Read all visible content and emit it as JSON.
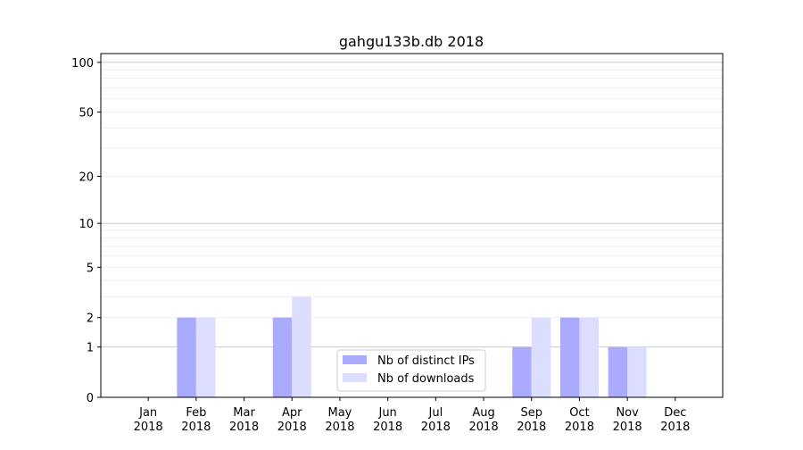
{
  "chart_data": {
    "type": "bar",
    "title": "gahgu133b.db 2018",
    "xlabel": "",
    "ylabel": "",
    "yscale": "log(1+y)",
    "ylim": [
      0,
      113
    ],
    "grid": true,
    "legend_position": "bottom-center",
    "categories": [
      "Jan\n2018",
      "Feb\n2018",
      "Mar\n2018",
      "Apr\n2018",
      "May\n2018",
      "Jun\n2018",
      "Jul\n2018",
      "Aug\n2018",
      "Sep\n2018",
      "Oct\n2018",
      "Nov\n2018",
      "Dec\n2018"
    ],
    "yticks": [
      0,
      1,
      2,
      5,
      10,
      20,
      50,
      100
    ],
    "series": [
      {
        "name": "Nb of distinct IPs",
        "color": "#aaaaff",
        "values": [
          0,
          2,
          0,
          2,
          0,
          0,
          0,
          0,
          1,
          2,
          1,
          0
        ]
      },
      {
        "name": "Nb of downloads",
        "color": "#ddddff",
        "values": [
          0,
          2,
          0,
          3,
          0,
          0,
          0,
          0,
          2,
          2,
          1,
          0
        ]
      }
    ]
  }
}
